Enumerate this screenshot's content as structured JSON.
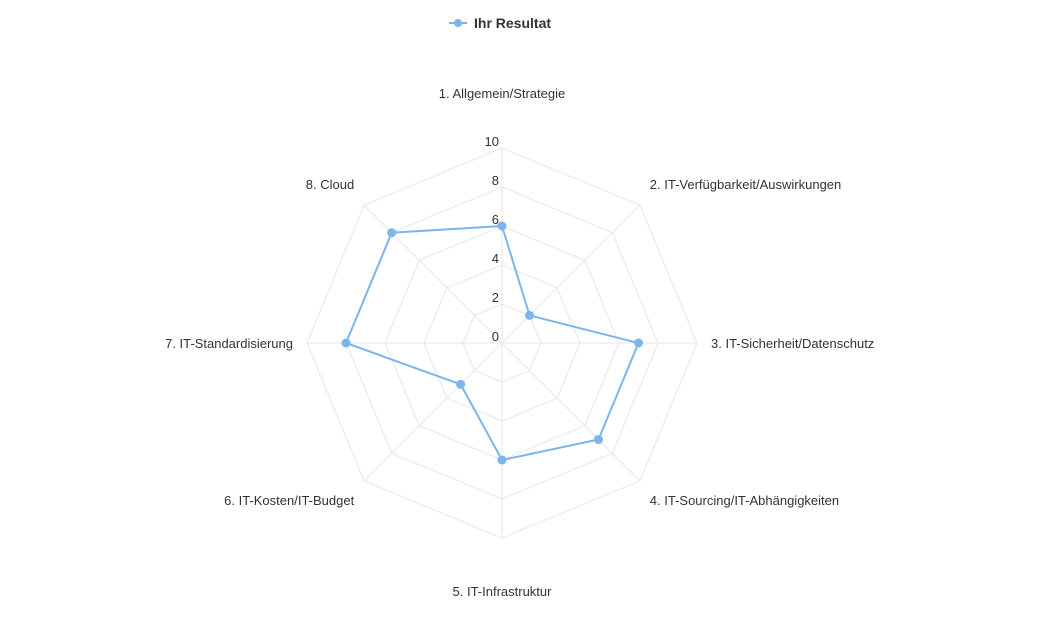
{
  "chart_data": {
    "type": "radar",
    "series": [
      {
        "name": "Ihr Resultat",
        "color": "#7cb5ec",
        "values": [
          6,
          2,
          7,
          7,
          6,
          3,
          8,
          8
        ]
      }
    ],
    "categories": [
      "1. Allgemein/Strategie",
      "2. IT-Verfügbarkeit/Auswirkungen",
      "3. IT-Sicherheit/Datenschutz",
      "4. IT-Sourcing/IT-Abhängigkeiten",
      "5. IT-Infrastruktur",
      "6. IT-Kosten/IT-Budget",
      "7. IT-Standardisierung",
      "8. Cloud"
    ],
    "radial_ticks": [
      0,
      2,
      4,
      6,
      8,
      10
    ],
    "ylim": [
      0,
      10
    ],
    "grid": true,
    "grid_color": "#e6e6e6",
    "legend_position": "top-center"
  }
}
